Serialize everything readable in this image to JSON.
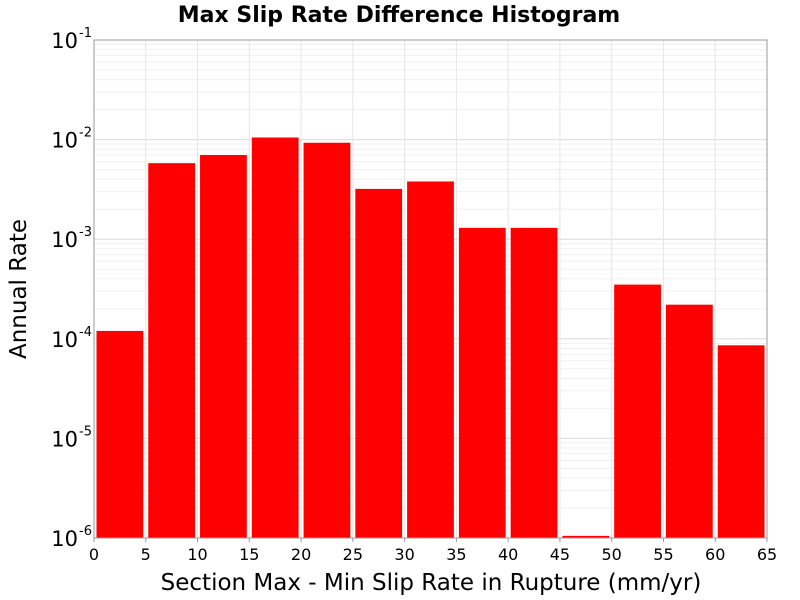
{
  "chart_data": {
    "type": "bar",
    "title": "Max Slip Rate Difference Histogram",
    "xlabel": "Section Max - Min Slip Rate in Rupture (mm/yr)",
    "ylabel": "Annual Rate",
    "xlim": [
      0,
      65
    ],
    "ylim": [
      1e-06,
      0.1
    ],
    "yscale": "log",
    "grid": true,
    "bar_color": "#ff0000",
    "x_ticks": [
      "0",
      "5",
      "10",
      "15",
      "20",
      "25",
      "30",
      "35",
      "40",
      "45",
      "50",
      "55",
      "60",
      "65"
    ],
    "y_ticks": [
      {
        "base": "10",
        "exp": "-6",
        "value": 1e-06
      },
      {
        "base": "10",
        "exp": "-5",
        "value": 1e-05
      },
      {
        "base": "10",
        "exp": "-4",
        "value": 0.0001
      },
      {
        "base": "10",
        "exp": "-3",
        "value": 0.001
      },
      {
        "base": "10",
        "exp": "-2",
        "value": 0.01
      },
      {
        "base": "10",
        "exp": "-1",
        "value": 0.1
      }
    ],
    "bins": [
      {
        "x_start": 0,
        "x_end": 5,
        "value": 0.00012
      },
      {
        "x_start": 5,
        "x_end": 10,
        "value": 0.0058
      },
      {
        "x_start": 10,
        "x_end": 15,
        "value": 0.007
      },
      {
        "x_start": 15,
        "x_end": 20,
        "value": 0.0105
      },
      {
        "x_start": 20,
        "x_end": 25,
        "value": 0.0093
      },
      {
        "x_start": 25,
        "x_end": 30,
        "value": 0.0032
      },
      {
        "x_start": 30,
        "x_end": 35,
        "value": 0.0038
      },
      {
        "x_start": 35,
        "x_end": 40,
        "value": 0.0013
      },
      {
        "x_start": 40,
        "x_end": 45,
        "value": 0.0013
      },
      {
        "x_start": 45,
        "x_end": 50,
        "value": 1.05e-06
      },
      {
        "x_start": 50,
        "x_end": 55,
        "value": 0.00035
      },
      {
        "x_start": 55,
        "x_end": 60,
        "value": 0.00022
      },
      {
        "x_start": 60,
        "x_end": 65,
        "value": 8.6e-05
      }
    ]
  }
}
